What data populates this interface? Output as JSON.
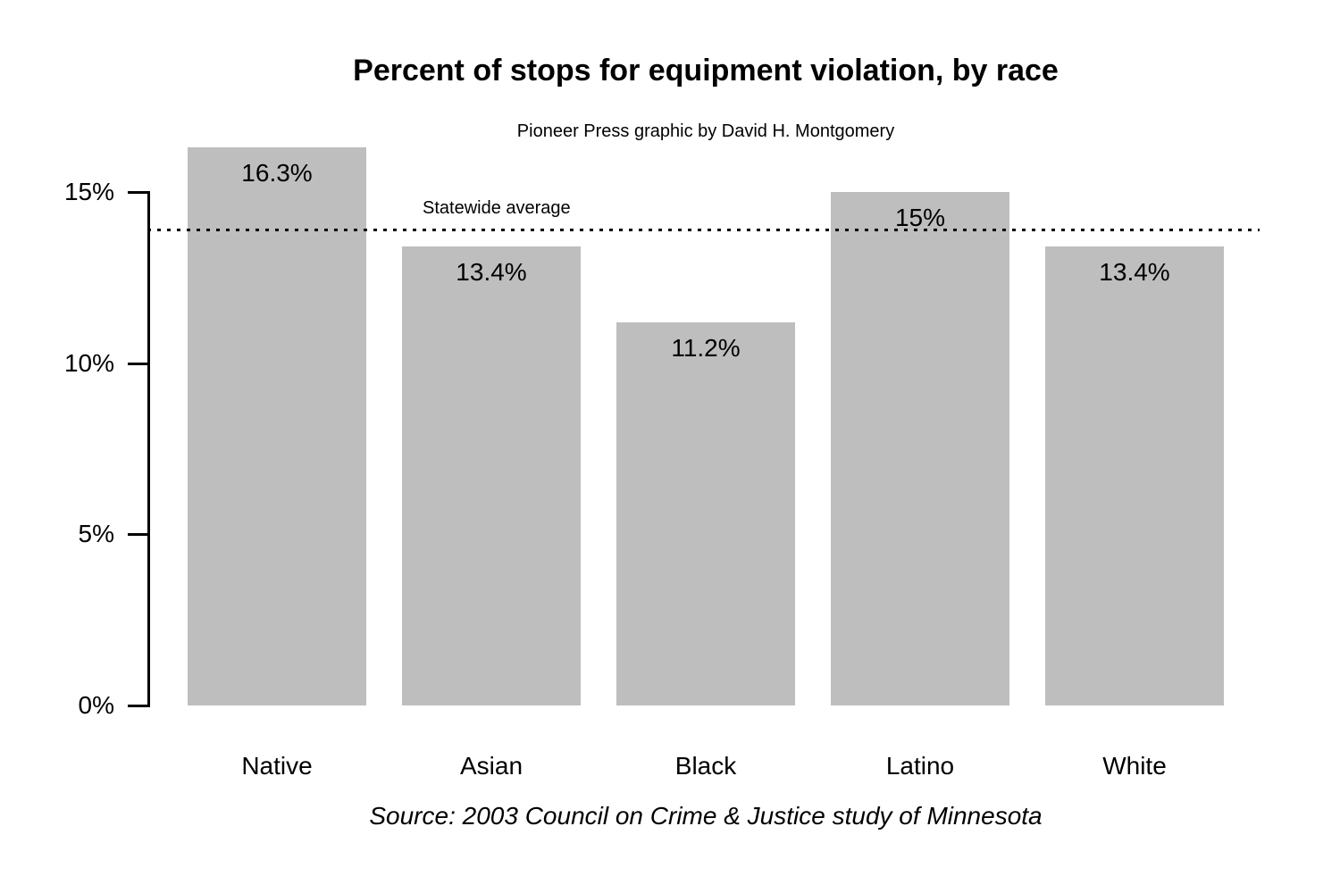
{
  "chart_data": {
    "type": "bar",
    "title": "Percent of stops for equipment violation, by race",
    "subtitle": "Pioneer Press graphic by David H. Montgomery",
    "source": "Source: 2003 Council on Crime & Justice study of Minnesota",
    "categories": [
      "Native",
      "Asian",
      "Black",
      "Latino",
      "White"
    ],
    "values": [
      16.3,
      13.4,
      11.2,
      15,
      13.4
    ],
    "value_labels": [
      "16.3%",
      "13.4%",
      "11.2%",
      "15%",
      "13.4%"
    ],
    "xlabel": "",
    "ylabel": "",
    "ylim": [
      0,
      16.8
    ],
    "yticks": {
      "values": [
        0,
        5,
        10,
        15
      ],
      "labels": [
        "0%",
        "5%",
        "10%",
        "15%"
      ]
    },
    "grid": false,
    "legend": false,
    "bar_color": "#bebebe",
    "text_color": "#000000",
    "reference_line": {
      "value": 13.9,
      "label": "Statewide average",
      "style": "dotted"
    }
  }
}
